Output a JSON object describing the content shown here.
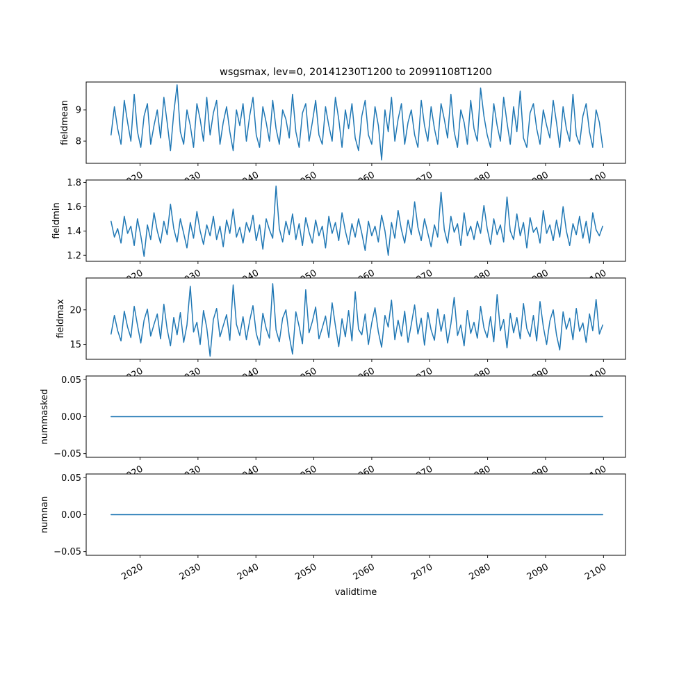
{
  "figure": {
    "title": "wsgsmax, lev=0, 20141230T1200 to 20991108T1200",
    "xlabel": "validtime",
    "background": "#ffffff",
    "line_color": "#1f77b4"
  },
  "chart_data": {
    "type": "line",
    "title": "wsgsmax, lev=0, 20141230T1200 to 20991108T1200",
    "xlabel": "validtime",
    "line_color": "#1f77b4",
    "grid": false,
    "legend": false,
    "x_start": 2015.0,
    "x_end": 2099.86,
    "xlim": [
      2010.7,
      2103.8
    ],
    "xticks": [
      2020,
      2030,
      2040,
      2050,
      2060,
      2070,
      2080,
      2090,
      2100
    ],
    "xtick_labels": [
      "2020",
      "2030",
      "2040",
      "2050",
      "2060",
      "2070",
      "2080",
      "2090",
      "2100"
    ],
    "xtick_rotation_deg": 30,
    "subplots": [
      {
        "name": "fieldmean",
        "ylabel": "fieldmean",
        "ylim": [
          7.29,
          9.89
        ],
        "yticks": [
          8,
          9
        ],
        "ytick_labels": [
          "8",
          "9"
        ],
        "values": [
          8.2,
          9.1,
          8.4,
          7.9,
          9.3,
          8.6,
          8.0,
          9.5,
          8.3,
          7.8,
          8.8,
          9.2,
          7.9,
          8.5,
          9.0,
          8.1,
          9.4,
          8.6,
          7.7,
          8.9,
          9.8,
          8.3,
          7.9,
          9.0,
          8.5,
          7.8,
          9.2,
          8.7,
          8.0,
          9.4,
          8.2,
          8.9,
          9.3,
          7.9,
          8.6,
          9.1,
          8.3,
          7.7,
          9.0,
          8.5,
          9.2,
          8.0,
          8.8,
          9.4,
          8.2,
          7.8,
          9.1,
          8.6,
          8.0,
          9.3,
          8.4,
          7.9,
          9.0,
          8.7,
          8.1,
          9.5,
          8.3,
          7.8,
          8.9,
          9.2,
          8.0,
          8.6,
          9.3,
          8.2,
          7.9,
          9.1,
          8.5,
          8.0,
          9.4,
          8.7,
          7.8,
          9.0,
          8.4,
          9.2,
          8.1,
          7.7,
          8.8,
          9.3,
          8.2,
          7.9,
          9.1,
          8.5,
          7.4,
          9.0,
          8.3,
          9.4,
          8.0,
          8.7,
          9.2,
          7.9,
          8.6,
          9.0,
          8.2,
          7.8,
          9.3,
          8.5,
          8.0,
          9.1,
          8.4,
          7.9,
          9.2,
          8.7,
          8.1,
          9.5,
          8.3,
          7.8,
          9.0,
          8.6,
          7.9,
          9.3,
          8.4,
          8.0,
          9.7,
          8.8,
          8.2,
          7.8,
          9.2,
          8.5,
          8.0,
          9.4,
          8.6,
          7.9,
          9.1,
          8.3,
          9.6,
          8.1,
          7.8,
          8.9,
          9.2,
          8.4,
          7.9,
          9.0,
          8.5,
          8.1,
          9.3,
          8.6,
          7.8,
          9.1,
          8.4,
          8.0,
          9.5,
          8.2,
          7.9,
          8.8,
          9.2,
          8.3,
          7.8,
          9.0,
          8.6,
          7.8
        ]
      },
      {
        "name": "fieldmin",
        "ylabel": "fieldmin",
        "ylim": [
          1.15,
          1.82
        ],
        "yticks": [
          1.2,
          1.4,
          1.6,
          1.8
        ],
        "ytick_labels": [
          "1.2",
          "1.4",
          "1.6",
          "1.8"
        ],
        "values": [
          1.48,
          1.35,
          1.42,
          1.3,
          1.52,
          1.38,
          1.44,
          1.28,
          1.5,
          1.36,
          1.19,
          1.45,
          1.33,
          1.55,
          1.4,
          1.3,
          1.48,
          1.37,
          1.62,
          1.42,
          1.31,
          1.5,
          1.38,
          1.26,
          1.47,
          1.34,
          1.56,
          1.4,
          1.29,
          1.45,
          1.36,
          1.52,
          1.33,
          1.44,
          1.27,
          1.49,
          1.38,
          1.58,
          1.35,
          1.43,
          1.3,
          1.47,
          1.39,
          1.53,
          1.32,
          1.45,
          1.25,
          1.5,
          1.41,
          1.34,
          1.77,
          1.42,
          1.31,
          1.48,
          1.37,
          1.54,
          1.33,
          1.46,
          1.28,
          1.51,
          1.39,
          1.3,
          1.49,
          1.36,
          1.44,
          1.26,
          1.52,
          1.38,
          1.47,
          1.32,
          1.55,
          1.4,
          1.29,
          1.46,
          1.35,
          1.5,
          1.38,
          1.24,
          1.48,
          1.36,
          1.44,
          1.31,
          1.53,
          1.4,
          1.2,
          1.47,
          1.34,
          1.57,
          1.41,
          1.3,
          1.49,
          1.37,
          1.64,
          1.43,
          1.32,
          1.5,
          1.38,
          1.27,
          1.45,
          1.35,
          1.72,
          1.41,
          1.3,
          1.52,
          1.39,
          1.46,
          1.28,
          1.55,
          1.36,
          1.44,
          1.33,
          1.48,
          1.38,
          1.61,
          1.42,
          1.29,
          1.5,
          1.37,
          1.45,
          1.31,
          1.68,
          1.4,
          1.33,
          1.54,
          1.36,
          1.47,
          1.26,
          1.51,
          1.39,
          1.43,
          1.3,
          1.57,
          1.38,
          1.45,
          1.32,
          1.49,
          1.35,
          1.6,
          1.4,
          1.28,
          1.46,
          1.37,
          1.52,
          1.34,
          1.48,
          1.3,
          1.55,
          1.41,
          1.36,
          1.44
        ]
      },
      {
        "name": "fieldmax",
        "ylabel": "fieldmax",
        "ylim": [
          12.85,
          24.6
        ],
        "yticks": [
          15,
          20
        ],
        "ytick_labels": [
          "15",
          "20"
        ],
        "values": [
          16.5,
          19.2,
          17.0,
          15.5,
          19.8,
          17.5,
          16.0,
          20.5,
          17.8,
          15.2,
          18.5,
          20.1,
          16.2,
          17.9,
          19.4,
          15.8,
          20.8,
          17.2,
          14.8,
          18.9,
          16.4,
          19.6,
          15.3,
          17.8,
          23.4,
          16.8,
          18.2,
          15.0,
          19.9,
          17.4,
          13.3,
          18.6,
          20.2,
          16.1,
          17.7,
          19.3,
          15.6,
          23.6,
          17.9,
          16.3,
          19.0,
          15.7,
          18.4,
          20.6,
          16.6,
          14.9,
          19.5,
          17.3,
          15.9,
          23.8,
          17.1,
          15.4,
          18.8,
          20.0,
          16.2,
          13.6,
          19.7,
          17.6,
          15.1,
          22.9,
          16.7,
          18.3,
          20.4,
          15.8,
          17.4,
          19.1,
          16.0,
          21.0,
          17.7,
          14.7,
          18.7,
          16.1,
          19.9,
          15.5,
          22.6,
          17.2,
          16.4,
          19.4,
          15.0,
          18.1,
          20.3,
          16.8,
          14.6,
          19.2,
          17.5,
          21.4,
          15.7,
          18.5,
          16.2,
          19.8,
          15.3,
          17.9,
          20.7,
          16.5,
          18.8,
          14.9,
          19.6,
          17.1,
          15.6,
          20.1,
          16.9,
          19.3,
          15.2,
          18.0,
          21.8,
          16.3,
          17.8,
          14.8,
          19.9,
          16.6,
          18.2,
          15.9,
          20.5,
          17.4,
          16.0,
          19.0,
          15.4,
          22.2,
          17.0,
          18.6,
          14.5,
          19.5,
          16.7,
          18.9,
          15.8,
          20.9,
          17.3,
          16.1,
          19.2,
          15.5,
          21.2,
          17.6,
          15.0,
          18.4,
          20.0,
          16.4,
          14.2,
          19.7,
          17.2,
          18.8,
          15.7,
          20.2,
          16.9,
          18.1,
          15.3,
          19.4,
          17.0,
          21.5,
          16.5,
          17.8
        ]
      },
      {
        "name": "nummasked",
        "ylabel": "nummasked",
        "ylim": [
          -0.055,
          0.055
        ],
        "yticks": [
          0.05,
          0.0,
          -0.05
        ],
        "ytick_labels": [
          "0.05",
          "0.00",
          "−0.05"
        ],
        "constant_value": 0.0
      },
      {
        "name": "numnan",
        "ylabel": "numnan",
        "ylim": [
          -0.055,
          0.055
        ],
        "yticks": [
          0.05,
          0.0,
          -0.05
        ],
        "ytick_labels": [
          "0.05",
          "0.00",
          "−0.05"
        ],
        "constant_value": 0.0
      }
    ]
  }
}
